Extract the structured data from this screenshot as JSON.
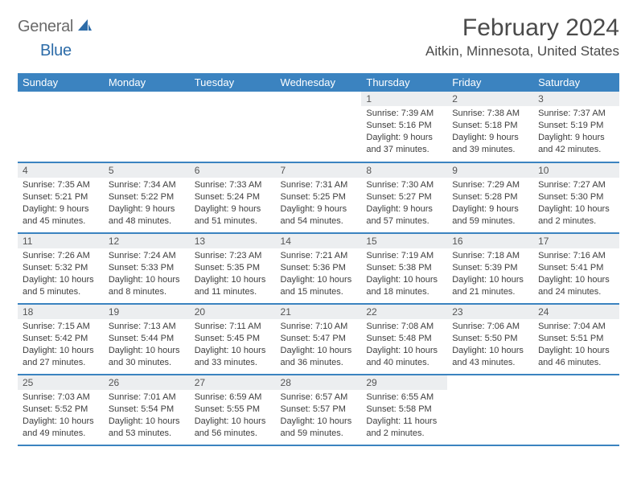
{
  "logo": {
    "textGray": "General",
    "textBlue": "Blue"
  },
  "title": "February 2024",
  "location": "Aitkin, Minnesota, United States",
  "colors": {
    "headerBg": "#3b83c0",
    "headerText": "#ffffff",
    "dayNumBg": "#eceef0",
    "border": "#3b83c0",
    "logoGray": "#6a6a6a",
    "logoBlue": "#2d6ca8"
  },
  "dayHeaders": [
    "Sunday",
    "Monday",
    "Tuesday",
    "Wednesday",
    "Thursday",
    "Friday",
    "Saturday"
  ],
  "weeks": [
    [
      {
        "num": "",
        "sunrise": "",
        "sunset": "",
        "daylight": ""
      },
      {
        "num": "",
        "sunrise": "",
        "sunset": "",
        "daylight": ""
      },
      {
        "num": "",
        "sunrise": "",
        "sunset": "",
        "daylight": ""
      },
      {
        "num": "",
        "sunrise": "",
        "sunset": "",
        "daylight": ""
      },
      {
        "num": "1",
        "sunrise": "Sunrise: 7:39 AM",
        "sunset": "Sunset: 5:16 PM",
        "daylight": "Daylight: 9 hours and 37 minutes."
      },
      {
        "num": "2",
        "sunrise": "Sunrise: 7:38 AM",
        "sunset": "Sunset: 5:18 PM",
        "daylight": "Daylight: 9 hours and 39 minutes."
      },
      {
        "num": "3",
        "sunrise": "Sunrise: 7:37 AM",
        "sunset": "Sunset: 5:19 PM",
        "daylight": "Daylight: 9 hours and 42 minutes."
      }
    ],
    [
      {
        "num": "4",
        "sunrise": "Sunrise: 7:35 AM",
        "sunset": "Sunset: 5:21 PM",
        "daylight": "Daylight: 9 hours and 45 minutes."
      },
      {
        "num": "5",
        "sunrise": "Sunrise: 7:34 AM",
        "sunset": "Sunset: 5:22 PM",
        "daylight": "Daylight: 9 hours and 48 minutes."
      },
      {
        "num": "6",
        "sunrise": "Sunrise: 7:33 AM",
        "sunset": "Sunset: 5:24 PM",
        "daylight": "Daylight: 9 hours and 51 minutes."
      },
      {
        "num": "7",
        "sunrise": "Sunrise: 7:31 AM",
        "sunset": "Sunset: 5:25 PM",
        "daylight": "Daylight: 9 hours and 54 minutes."
      },
      {
        "num": "8",
        "sunrise": "Sunrise: 7:30 AM",
        "sunset": "Sunset: 5:27 PM",
        "daylight": "Daylight: 9 hours and 57 minutes."
      },
      {
        "num": "9",
        "sunrise": "Sunrise: 7:29 AM",
        "sunset": "Sunset: 5:28 PM",
        "daylight": "Daylight: 9 hours and 59 minutes."
      },
      {
        "num": "10",
        "sunrise": "Sunrise: 7:27 AM",
        "sunset": "Sunset: 5:30 PM",
        "daylight": "Daylight: 10 hours and 2 minutes."
      }
    ],
    [
      {
        "num": "11",
        "sunrise": "Sunrise: 7:26 AM",
        "sunset": "Sunset: 5:32 PM",
        "daylight": "Daylight: 10 hours and 5 minutes."
      },
      {
        "num": "12",
        "sunrise": "Sunrise: 7:24 AM",
        "sunset": "Sunset: 5:33 PM",
        "daylight": "Daylight: 10 hours and 8 minutes."
      },
      {
        "num": "13",
        "sunrise": "Sunrise: 7:23 AM",
        "sunset": "Sunset: 5:35 PM",
        "daylight": "Daylight: 10 hours and 11 minutes."
      },
      {
        "num": "14",
        "sunrise": "Sunrise: 7:21 AM",
        "sunset": "Sunset: 5:36 PM",
        "daylight": "Daylight: 10 hours and 15 minutes."
      },
      {
        "num": "15",
        "sunrise": "Sunrise: 7:19 AM",
        "sunset": "Sunset: 5:38 PM",
        "daylight": "Daylight: 10 hours and 18 minutes."
      },
      {
        "num": "16",
        "sunrise": "Sunrise: 7:18 AM",
        "sunset": "Sunset: 5:39 PM",
        "daylight": "Daylight: 10 hours and 21 minutes."
      },
      {
        "num": "17",
        "sunrise": "Sunrise: 7:16 AM",
        "sunset": "Sunset: 5:41 PM",
        "daylight": "Daylight: 10 hours and 24 minutes."
      }
    ],
    [
      {
        "num": "18",
        "sunrise": "Sunrise: 7:15 AM",
        "sunset": "Sunset: 5:42 PM",
        "daylight": "Daylight: 10 hours and 27 minutes."
      },
      {
        "num": "19",
        "sunrise": "Sunrise: 7:13 AM",
        "sunset": "Sunset: 5:44 PM",
        "daylight": "Daylight: 10 hours and 30 minutes."
      },
      {
        "num": "20",
        "sunrise": "Sunrise: 7:11 AM",
        "sunset": "Sunset: 5:45 PM",
        "daylight": "Daylight: 10 hours and 33 minutes."
      },
      {
        "num": "21",
        "sunrise": "Sunrise: 7:10 AM",
        "sunset": "Sunset: 5:47 PM",
        "daylight": "Daylight: 10 hours and 36 minutes."
      },
      {
        "num": "22",
        "sunrise": "Sunrise: 7:08 AM",
        "sunset": "Sunset: 5:48 PM",
        "daylight": "Daylight: 10 hours and 40 minutes."
      },
      {
        "num": "23",
        "sunrise": "Sunrise: 7:06 AM",
        "sunset": "Sunset: 5:50 PM",
        "daylight": "Daylight: 10 hours and 43 minutes."
      },
      {
        "num": "24",
        "sunrise": "Sunrise: 7:04 AM",
        "sunset": "Sunset: 5:51 PM",
        "daylight": "Daylight: 10 hours and 46 minutes."
      }
    ],
    [
      {
        "num": "25",
        "sunrise": "Sunrise: 7:03 AM",
        "sunset": "Sunset: 5:52 PM",
        "daylight": "Daylight: 10 hours and 49 minutes."
      },
      {
        "num": "26",
        "sunrise": "Sunrise: 7:01 AM",
        "sunset": "Sunset: 5:54 PM",
        "daylight": "Daylight: 10 hours and 53 minutes."
      },
      {
        "num": "27",
        "sunrise": "Sunrise: 6:59 AM",
        "sunset": "Sunset: 5:55 PM",
        "daylight": "Daylight: 10 hours and 56 minutes."
      },
      {
        "num": "28",
        "sunrise": "Sunrise: 6:57 AM",
        "sunset": "Sunset: 5:57 PM",
        "daylight": "Daylight: 10 hours and 59 minutes."
      },
      {
        "num": "29",
        "sunrise": "Sunrise: 6:55 AM",
        "sunset": "Sunset: 5:58 PM",
        "daylight": "Daylight: 11 hours and 2 minutes."
      },
      {
        "num": "",
        "sunrise": "",
        "sunset": "",
        "daylight": ""
      },
      {
        "num": "",
        "sunrise": "",
        "sunset": "",
        "daylight": ""
      }
    ]
  ]
}
